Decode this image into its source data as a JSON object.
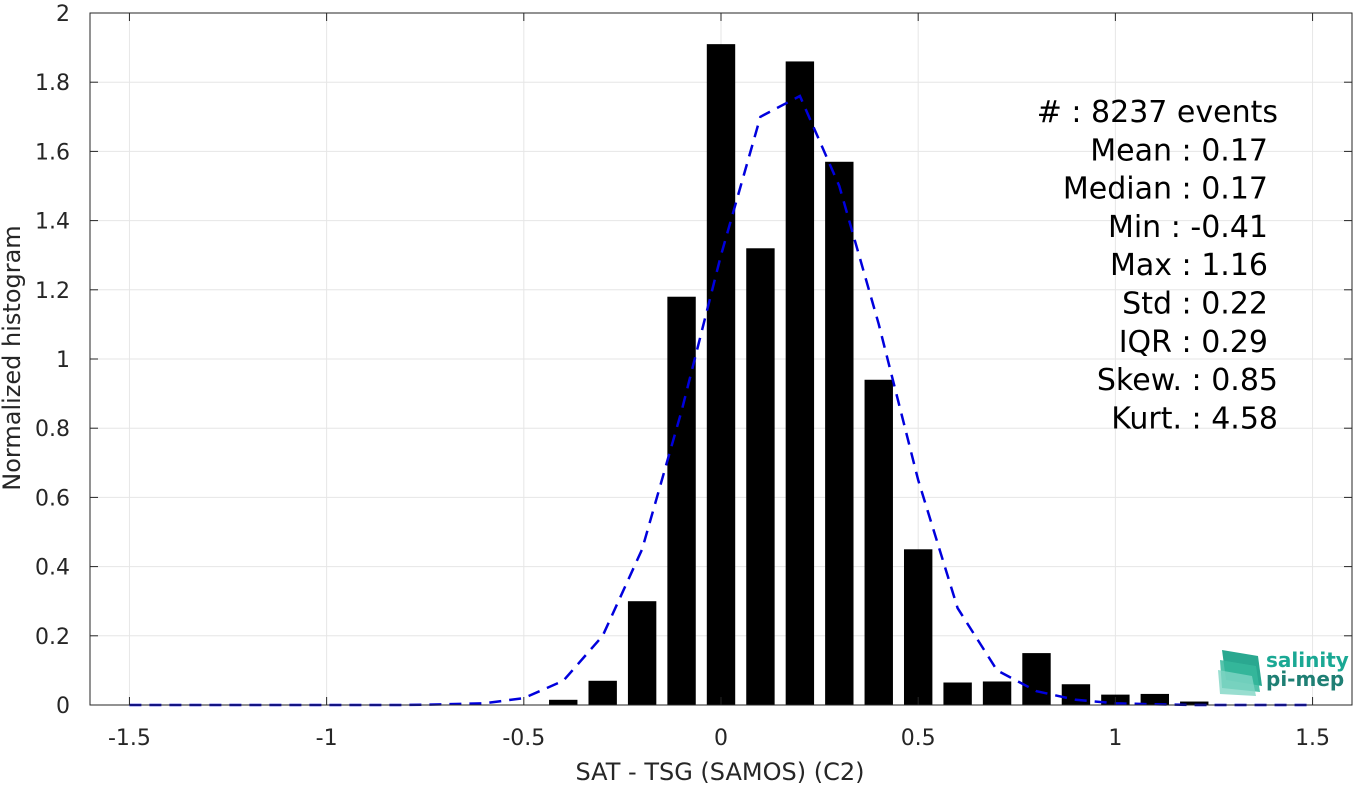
{
  "chart_data": {
    "type": "bar",
    "xlabel": "SAT - TSG (SAMOS) (C2)",
    "ylabel": "Normalized histogram",
    "xlim": [
      -1.6,
      1.6
    ],
    "ylim": [
      0,
      2
    ],
    "xticks": [
      -1.5,
      -1,
      -0.5,
      0,
      0.5,
      1,
      1.5
    ],
    "xtick_labels": [
      "-1.5",
      "-1",
      "-0.5",
      "0",
      "0.5",
      "1",
      "1.5"
    ],
    "yticks": [
      0,
      0.2,
      0.4,
      0.6,
      0.8,
      1,
      1.2,
      1.4,
      1.6,
      1.8,
      2
    ],
    "ytick_labels": [
      "0",
      "0.2",
      "0.4",
      "0.6",
      "0.8",
      "1",
      "1.2",
      "1.4",
      "1.6",
      "1.8",
      "2"
    ],
    "grid": true,
    "bar_width": 0.072,
    "bars": {
      "x": [
        -0.4,
        -0.3,
        -0.2,
        -0.1,
        0,
        0.1,
        0.2,
        0.3,
        0.4,
        0.5,
        0.6,
        0.7,
        0.8,
        0.9,
        1.0,
        1.1,
        1.2
      ],
      "values": [
        0.015,
        0.07,
        0.3,
        1.18,
        1.91,
        1.32,
        1.86,
        1.57,
        0.94,
        0.45,
        0.065,
        0.068,
        0.15,
        0.06,
        0.03,
        0.032,
        0.01
      ],
      "color": "#000000"
    },
    "fit_curve": {
      "style": "dashed",
      "color": "#0000dd",
      "x": [
        -1.5,
        -1.4,
        -1.3,
        -1.2,
        -1.1,
        -1.0,
        -0.9,
        -0.8,
        -0.7,
        -0.6,
        -0.5,
        -0.4,
        -0.3,
        -0.2,
        -0.1,
        0.0,
        0.1,
        0.2,
        0.3,
        0.4,
        0.5,
        0.6,
        0.7,
        0.8,
        0.9,
        1.0,
        1.1,
        1.2,
        1.3,
        1.4,
        1.5
      ],
      "y": [
        0,
        0,
        0,
        0,
        0,
        0,
        0,
        0,
        0.002,
        0.005,
        0.02,
        0.07,
        0.2,
        0.45,
        0.85,
        1.3,
        1.7,
        1.76,
        1.5,
        1.1,
        0.65,
        0.28,
        0.1,
        0.04,
        0.015,
        0.005,
        0.002,
        0,
        0,
        0,
        0
      ]
    },
    "stats": [
      {
        "label": "#  : 8237 events"
      },
      {
        "label": "Mean : 0.17"
      },
      {
        "label": "Median : 0.17"
      },
      {
        "label": "Min : -0.41"
      },
      {
        "label": "Max : 1.16"
      },
      {
        "label": "Std : 0.22"
      },
      {
        "label": "IQR : 0.29"
      },
      {
        "label": "Skew. : 0.85"
      },
      {
        "label": "Kurt. : 4.58"
      }
    ]
  },
  "logo": {
    "line1": "salinity",
    "line2": "pi-mep",
    "color1": "#1aa894",
    "color2": "#1f7f74"
  }
}
